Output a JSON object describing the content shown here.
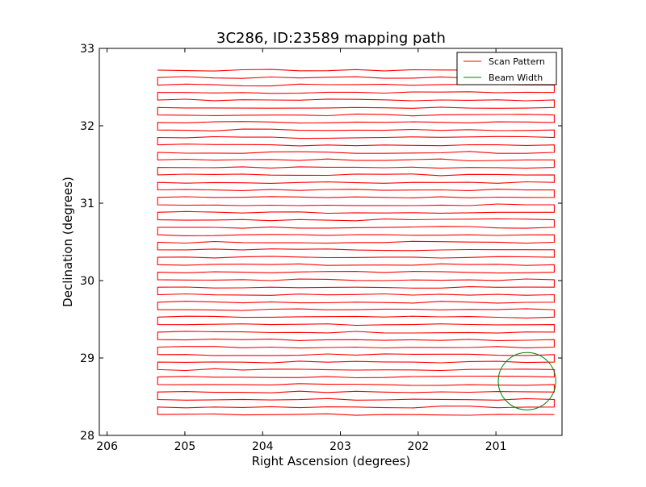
{
  "chart_data": {
    "type": "line",
    "title": "3C286, ID:23589 mapping path",
    "xlabel": "Right Ascension (degrees)",
    "ylabel": "Declination (degrees)",
    "xlim": [
      206.1,
      200.15
    ],
    "ylim": [
      28,
      33
    ],
    "x_ticks": [
      206,
      205,
      204,
      203,
      202,
      201
    ],
    "y_ticks": [
      28,
      29,
      30,
      31,
      32,
      33
    ],
    "grid": false,
    "legend_position": "top-right",
    "series": [
      {
        "name": "Scan Pattern",
        "color": "#ff0000",
        "scan_rows": {
          "dec_start": 28.27,
          "dec_end": 32.72,
          "row_count": 47,
          "ra_min": 200.25,
          "ra_max": 205.35
        }
      },
      {
        "name": "Beam Width",
        "color": "#008000",
        "circle": {
          "center_ra": 200.6,
          "center_dec": 28.7,
          "radius_deg": 0.37
        }
      }
    ]
  }
}
